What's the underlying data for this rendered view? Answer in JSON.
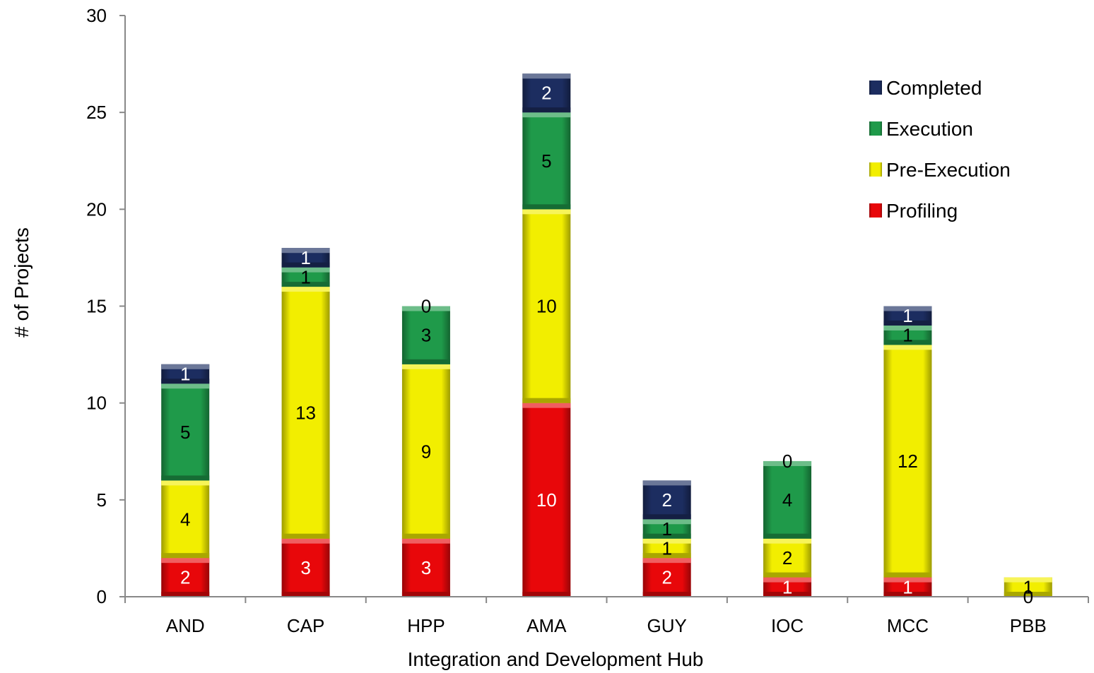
{
  "chart_data": {
    "type": "bar",
    "stacked": true,
    "title": "",
    "xlabel": "Integration and Development Hub",
    "ylabel": "# of Projects",
    "ylim": [
      0,
      30
    ],
    "yticks": [
      0,
      5,
      10,
      15,
      20,
      25,
      30
    ],
    "grid": false,
    "legend_position": "top-right",
    "categories": [
      "AND",
      "CAP",
      "HPP",
      "AMA",
      "GUY",
      "IOC",
      "MCC",
      "PBB"
    ],
    "series": [
      {
        "name": "Profiling",
        "color": "#e8070a",
        "values": [
          2,
          3,
          3,
          10,
          2,
          1,
          1,
          0
        ]
      },
      {
        "name": "Pre-Execution",
        "color": "#f2ee00",
        "values": [
          4,
          13,
          9,
          10,
          1,
          2,
          12,
          1
        ]
      },
      {
        "name": "Execution",
        "color": "#1f9a4a",
        "values": [
          5,
          1,
          3,
          5,
          1,
          4,
          1,
          null
        ]
      },
      {
        "name": "Completed",
        "color": "#1c2d60",
        "values": [
          1,
          1,
          0,
          2,
          2,
          0,
          1,
          null
        ]
      }
    ],
    "legend_order": [
      "Completed",
      "Execution",
      "Pre-Execution",
      "Profiling"
    ]
  }
}
